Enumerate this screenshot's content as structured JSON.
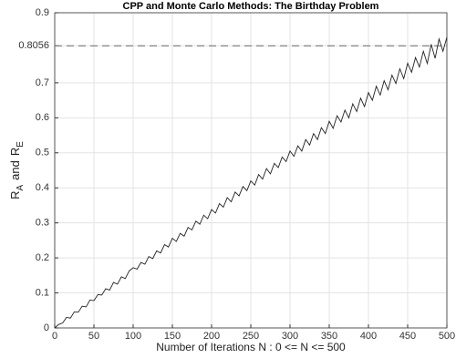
{
  "chart_data": {
    "type": "line",
    "title": "CPP and Monte Carlo Methods: The Birthday Problem",
    "xlabel": "Number of Iterations N :  0 <= N <= 500",
    "ylabel": [
      {
        "text": "R"
      },
      {
        "text": "A",
        "sub": true
      },
      {
        "text": "and"
      },
      {
        "text": "R"
      },
      {
        "text": "E",
        "sub": true
      }
    ],
    "x": [
      0,
      5,
      10,
      15,
      20,
      25,
      30,
      35,
      40,
      45,
      50,
      55,
      60,
      65,
      70,
      75,
      80,
      85,
      90,
      95,
      100,
      105,
      110,
      115,
      120,
      125,
      130,
      135,
      140,
      145,
      150,
      155,
      160,
      165,
      170,
      175,
      180,
      185,
      190,
      195,
      200,
      205,
      210,
      215,
      220,
      225,
      230,
      235,
      240,
      245,
      250,
      255,
      260,
      265,
      270,
      275,
      280,
      285,
      290,
      295,
      300,
      305,
      310,
      315,
      320,
      325,
      330,
      335,
      340,
      345,
      350,
      355,
      360,
      365,
      370,
      375,
      380,
      385,
      390,
      395,
      400,
      405,
      410,
      415,
      420,
      425,
      430,
      435,
      440,
      445,
      450,
      455,
      460,
      465,
      470,
      475,
      480,
      485,
      490,
      495,
      500
    ],
    "series": [
      {
        "color": "#222222",
        "values": [
          0,
          0.01,
          0.014,
          0.03,
          0.028,
          0.046,
          0.045,
          0.062,
          0.06,
          0.08,
          0.078,
          0.095,
          0.094,
          0.112,
          0.108,
          0.13,
          0.125,
          0.146,
          0.141,
          0.163,
          0.172,
          0.168,
          0.187,
          0.182,
          0.204,
          0.198,
          0.22,
          0.214,
          0.238,
          0.231,
          0.256,
          0.247,
          0.27,
          0.262,
          0.287,
          0.28,
          0.305,
          0.296,
          0.322,
          0.312,
          0.338,
          0.328,
          0.355,
          0.345,
          0.372,
          0.36,
          0.388,
          0.377,
          0.404,
          0.392,
          0.42,
          0.408,
          0.438,
          0.425,
          0.455,
          0.44,
          0.47,
          0.458,
          0.488,
          0.475,
          0.505,
          0.49,
          0.52,
          0.505,
          0.538,
          0.522,
          0.555,
          0.538,
          0.572,
          0.555,
          0.59,
          0.57,
          0.606,
          0.588,
          0.622,
          0.6,
          0.64,
          0.618,
          0.656,
          0.632,
          0.672,
          0.65,
          0.69,
          0.665,
          0.706,
          0.68,
          0.722,
          0.698,
          0.74,
          0.712,
          0.756,
          0.73,
          0.772,
          0.745,
          0.79,
          0.755,
          0.81,
          0.77,
          0.825,
          0.79,
          0.83
        ]
      }
    ],
    "hline": {
      "value": 0.8056,
      "color": "#777777"
    },
    "xlim": [
      0,
      500
    ],
    "xticks": [
      0,
      50,
      100,
      150,
      200,
      250,
      300,
      350,
      400,
      450,
      500
    ],
    "ylim": [
      0,
      0.9
    ],
    "yticks": [
      0,
      0.1,
      0.2,
      0.3,
      0.4,
      0.5,
      0.6,
      0.7,
      0.8056,
      0.9
    ],
    "grid": true
  }
}
